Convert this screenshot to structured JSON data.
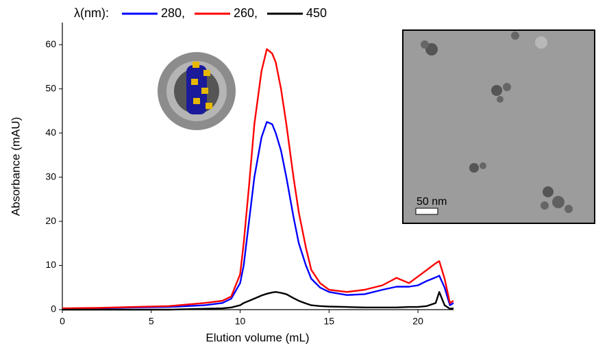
{
  "chart_data": {
    "type": "line",
    "legend_label": "λ(nm):",
    "x_label": "Elution volume (mL)",
    "y_label": "Absorbance (mAU)",
    "scale_bar_label": "50 nm",
    "xlim": [
      0,
      22
    ],
    "xticks": [
      0,
      5,
      10,
      15,
      20
    ],
    "ylim": [
      0,
      65
    ],
    "yticks": [
      0,
      10,
      20,
      30,
      40,
      50,
      60
    ],
    "x": [
      0,
      2,
      4,
      6,
      8,
      9,
      9.5,
      10,
      10.2,
      10.5,
      10.8,
      11.2,
      11.5,
      11.8,
      12,
      12.3,
      12.6,
      13,
      13.3,
      13.7,
      14,
      14.5,
      15,
      16,
      17,
      18,
      18.8,
      19.5,
      20,
      20.5,
      21,
      21.2,
      21.5,
      21.8,
      22
    ],
    "series": [
      {
        "name": "280,",
        "color": "#0000ff",
        "values": [
          0.2,
          0.3,
          0.5,
          0.6,
          1,
          1.5,
          2.5,
          6,
          10,
          20,
          30,
          39,
          42.5,
          42,
          40,
          36,
          30,
          21,
          15,
          10,
          7,
          5,
          4,
          3.3,
          3.5,
          4.5,
          5.2,
          5.2,
          5.5,
          6.5,
          7.3,
          7.7,
          5,
          1,
          1.5
        ]
      },
      {
        "name": "260,",
        "color": "#ff0000",
        "values": [
          0.3,
          0.4,
          0.6,
          0.8,
          1.5,
          2,
          3,
          8,
          15,
          28,
          42,
          54,
          59,
          58,
          56,
          50,
          42,
          30,
          22,
          14,
          9,
          6,
          4.5,
          4,
          4.5,
          5.5,
          7.2,
          6,
          7.5,
          9,
          10.5,
          11,
          7,
          1.5,
          2
        ]
      },
      {
        "name": "450",
        "color": "#000000",
        "values": [
          0,
          0,
          0,
          0,
          0.2,
          0.3,
          0.5,
          1,
          1.5,
          2,
          2.5,
          3.2,
          3.6,
          3.9,
          4,
          3.8,
          3.5,
          2.6,
          2,
          1.4,
          1,
          0.8,
          0.7,
          0.6,
          0.5,
          0.5,
          0.5,
          0.6,
          0.6,
          0.8,
          1.5,
          4,
          1,
          0.2,
          0.3
        ]
      }
    ]
  }
}
